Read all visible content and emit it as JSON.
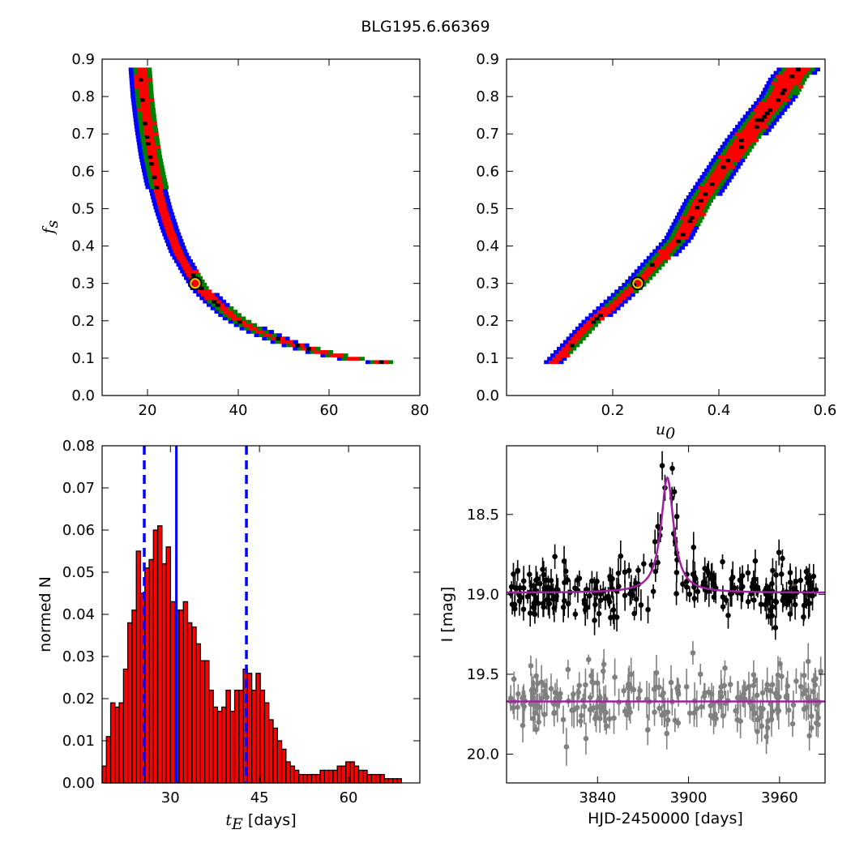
{
  "title": "BLG195.6.66369",
  "chart_data": [
    {
      "type": "heatmap",
      "panel": "fs-vs-tE",
      "xlabel": "",
      "ylabel": "f_s",
      "xlim": [
        10,
        80
      ],
      "ylim": [
        0.0,
        0.9
      ],
      "xticks": [
        20,
        40,
        60,
        80
      ],
      "yticks": [
        0.0,
        0.1,
        0.2,
        0.3,
        0.4,
        0.5,
        0.6,
        0.7,
        0.8,
        0.9
      ],
      "density_colors": [
        "#0000ff",
        "#008000",
        "#ff0000",
        "#000000"
      ],
      "ridge": [
        [
          18.0,
          0.88
        ],
        [
          18.5,
          0.8
        ],
        [
          19.3,
          0.72
        ],
        [
          20.3,
          0.64
        ],
        [
          21.5,
          0.57
        ],
        [
          23.0,
          0.5
        ],
        [
          24.6,
          0.44
        ],
        [
          26.5,
          0.38
        ],
        [
          29.0,
          0.33
        ],
        [
          31.5,
          0.285
        ],
        [
          34.5,
          0.25
        ],
        [
          38.5,
          0.21
        ],
        [
          43.5,
          0.175
        ],
        [
          49.5,
          0.145
        ],
        [
          56.5,
          0.12
        ],
        [
          64.0,
          0.1
        ],
        [
          71.0,
          0.09
        ]
      ],
      "best_fit": {
        "tE": 30.5,
        "fs": 0.3
      }
    },
    {
      "type": "heatmap",
      "panel": "fs-vs-u0",
      "xlabel": "u_0",
      "ylabel": "",
      "xlim": [
        0.0,
        0.6
      ],
      "ylim": [
        0.0,
        0.9
      ],
      "xticks": [
        0.2,
        0.4,
        0.6
      ],
      "yticks": [
        0.0,
        0.1,
        0.2,
        0.3,
        0.4,
        0.5,
        0.6,
        0.7,
        0.8,
        0.9
      ],
      "density_colors": [
        "#0000ff",
        "#008000",
        "#ff0000",
        "#000000"
      ],
      "ridge": [
        [
          0.085,
          0.09
        ],
        [
          0.12,
          0.14
        ],
        [
          0.16,
          0.2
        ],
        [
          0.2,
          0.25
        ],
        [
          0.24,
          0.3
        ],
        [
          0.28,
          0.36
        ],
        [
          0.32,
          0.42
        ],
        [
          0.36,
          0.52
        ],
        [
          0.4,
          0.6
        ],
        [
          0.44,
          0.68
        ],
        [
          0.48,
          0.75
        ],
        [
          0.51,
          0.8
        ],
        [
          0.53,
          0.85
        ],
        [
          0.55,
          0.88
        ]
      ],
      "best_fit": {
        "u0": 0.247,
        "fs": 0.3
      }
    },
    {
      "type": "bar",
      "panel": "tE-histogram",
      "xlabel": "t_E  [days]",
      "ylabel": "normed N",
      "xlim": [
        18.5,
        72.0
      ],
      "ylim": [
        0.0,
        0.08
      ],
      "xticks": [
        30,
        45,
        60
      ],
      "yticks": [
        0.0,
        0.01,
        0.02,
        0.03,
        0.04,
        0.05,
        0.06,
        0.07,
        0.08
      ],
      "bar_color": "#ff0000",
      "bin_width": 0.72,
      "bin_start": 18.5,
      "values": [
        0.004,
        0.011,
        0.019,
        0.018,
        0.019,
        0.027,
        0.038,
        0.041,
        0.055,
        0.045,
        0.051,
        0.053,
        0.06,
        0.061,
        0.052,
        0.056,
        0.043,
        0.041,
        0.041,
        0.043,
        0.038,
        0.037,
        0.033,
        0.029,
        0.029,
        0.022,
        0.018,
        0.017,
        0.018,
        0.022,
        0.017,
        0.022,
        0.022,
        0.027,
        0.026,
        0.022,
        0.026,
        0.022,
        0.019,
        0.015,
        0.013,
        0.01,
        0.008,
        0.005,
        0.004,
        0.003,
        0.002,
        0.002,
        0.002,
        0.002,
        0.002,
        0.003,
        0.003,
        0.003,
        0.003,
        0.004,
        0.004,
        0.005,
        0.005,
        0.004,
        0.003,
        0.003,
        0.002,
        0.002,
        0.002,
        0.002,
        0.001,
        0.001,
        0.001,
        0.001
      ],
      "median_line": {
        "x": 31.0,
        "style": "solid",
        "color": "#0000ff"
      },
      "interval_lines": [
        {
          "x": 25.6,
          "style": "dashed",
          "color": "#0000ff"
        },
        {
          "x": 42.8,
          "style": "dashed",
          "color": "#0000ff"
        }
      ]
    },
    {
      "type": "scatter",
      "panel": "light-curve",
      "xlabel": "HJD-2450000 [days]",
      "ylabel": "I [mag]",
      "xlim": [
        3780,
        3990
      ],
      "ylim": [
        20.18,
        18.07
      ],
      "y_inverted": true,
      "xticks": [
        3840,
        3900,
        3960
      ],
      "yticks": [
        18.5,
        19.0,
        19.5,
        20.0
      ],
      "model": {
        "baseline": 18.99,
        "peak_mag": 18.27,
        "t0": 3886,
        "width": 4.8,
        "color": "#a020a0"
      },
      "series": [
        {
          "name": "",
          "color": "#000000",
          "baseline": 18.99,
          "scatter": 0.08,
          "n": 260,
          "follows_model": true
        },
        {
          "name": "",
          "color": "#808080",
          "baseline": 19.67,
          "scatter": 0.09,
          "n": 240,
          "follows_model": false,
          "model_line": 19.67
        }
      ]
    }
  ]
}
